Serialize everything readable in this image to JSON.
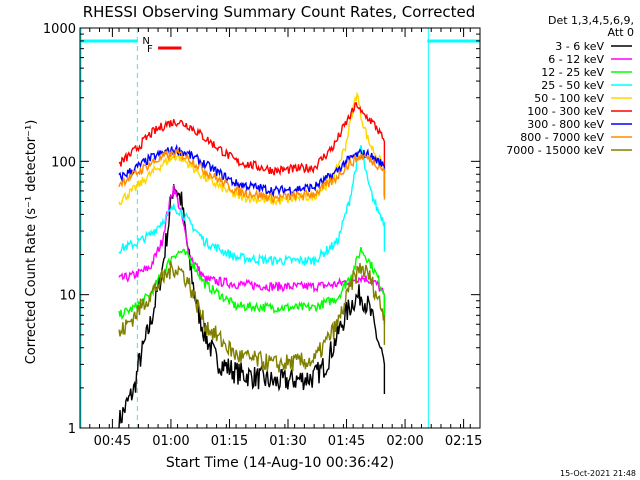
{
  "chart_data": {
    "type": "line",
    "title": "RHESSI Observing Summary Count Rates, Corrected",
    "xlabel": "Start Time (14-Aug-10 00:36:42)",
    "ylabel": "Corrected Count Rate (s⁻¹ detector⁻¹)",
    "yscale": "log",
    "ylim": [
      1,
      1000
    ],
    "xlim_minutes": [
      0,
      102.5
    ],
    "y_ticks": [
      {
        "value": 1,
        "label": "1"
      },
      {
        "value": 10,
        "label": "10"
      },
      {
        "value": 100,
        "label": "100"
      },
      {
        "value": 1000,
        "label": "1000"
      }
    ],
    "x_ticks": [
      {
        "t": 8.3,
        "label": "00:45"
      },
      {
        "t": 23.3,
        "label": "01:00"
      },
      {
        "t": 38.3,
        "label": "01:15"
      },
      {
        "t": 53.3,
        "label": "01:30"
      },
      {
        "t": 68.3,
        "label": "01:45"
      },
      {
        "t": 83.3,
        "label": "02:00"
      },
      {
        "t": 98.3,
        "label": "02:15"
      }
    ],
    "legend": {
      "header": [
        "Det 1,3,4,5,6,9,",
        "Att 0"
      ],
      "position": "right"
    },
    "series": [
      {
        "name": "3 - 6 keV",
        "color": "#000000",
        "t": [
          10,
          11,
          12,
          14,
          15,
          18,
          21,
          23,
          24,
          26,
          28,
          30,
          32,
          35,
          40,
          45,
          50,
          55,
          60,
          63,
          66,
          68,
          70,
          72,
          74,
          76,
          78
        ],
        "y": [
          1.1,
          1.3,
          1.5,
          2,
          3,
          6,
          15,
          40,
          70,
          50,
          18,
          8,
          5,
          3.2,
          2.6,
          2.4,
          2.2,
          2.3,
          2.4,
          3,
          5,
          7,
          9,
          10,
          8,
          5,
          3
        ]
      },
      {
        "name": "6 - 12 keV",
        "color": "#ff00ff",
        "t": [
          10,
          14,
          18,
          21,
          23,
          24,
          26,
          28,
          32,
          40,
          50,
          60,
          66,
          70,
          72,
          74,
          76,
          78
        ],
        "y": [
          13,
          14,
          16,
          25,
          50,
          65,
          40,
          20,
          13,
          12,
          11.5,
          11.5,
          12,
          13,
          13.5,
          13,
          12,
          10
        ]
      },
      {
        "name": "12 - 25 keV",
        "color": "#00ff00",
        "t": [
          10,
          14,
          18,
          22,
          24,
          26,
          28,
          32,
          40,
          50,
          60,
          66,
          70,
          72,
          74,
          76,
          78
        ],
        "y": [
          7,
          8,
          10,
          16,
          20,
          21,
          19,
          12,
          8.2,
          8,
          8,
          9.5,
          15,
          22,
          18,
          14,
          10
        ]
      },
      {
        "name": "25 - 50 keV",
        "color": "#00ffff",
        "t": [
          10,
          14,
          18,
          22,
          24,
          26,
          28,
          32,
          40,
          50,
          60,
          66,
          69,
          71,
          72,
          73,
          74,
          76,
          78
        ],
        "y": [
          22,
          24,
          28,
          38,
          45,
          42,
          35,
          25,
          19,
          18,
          18,
          25,
          50,
          100,
          130,
          90,
          65,
          45,
          35
        ]
      },
      {
        "name": "50 - 100 keV",
        "color": "#ffd700",
        "t": [
          10,
          14,
          18,
          22,
          25,
          28,
          32,
          40,
          50,
          60,
          65,
          68,
          70,
          71,
          72,
          74,
          76,
          78
        ],
        "y": [
          50,
          62,
          80,
          100,
          110,
          95,
          75,
          55,
          50,
          55,
          75,
          130,
          250,
          330,
          220,
          140,
          110,
          90
        ]
      },
      {
        "name": "100 - 300 keV",
        "color": "#ff0000",
        "t": [
          10,
          14,
          18,
          22,
          25,
          28,
          32,
          40,
          50,
          60,
          65,
          68,
          70,
          71,
          72,
          74,
          76,
          78
        ],
        "y": [
          95,
          120,
          160,
          190,
          200,
          185,
          150,
          100,
          85,
          90,
          130,
          190,
          240,
          270,
          230,
          210,
          180,
          140
        ]
      },
      {
        "name": "300 - 800 keV",
        "color": "#0000ff",
        "t": [
          10,
          14,
          18,
          22,
          25,
          28,
          32,
          40,
          50,
          60,
          65,
          68,
          70,
          72,
          74,
          76,
          78
        ],
        "y": [
          75,
          88,
          105,
          118,
          122,
          112,
          95,
          68,
          60,
          64,
          80,
          98,
          108,
          115,
          112,
          102,
          92
        ]
      },
      {
        "name": "800 - 7000 keV",
        "color": "#ff8c00",
        "t": [
          10,
          14,
          18,
          22,
          25,
          28,
          32,
          40,
          50,
          60,
          65,
          68,
          70,
          72,
          74,
          76,
          78
        ],
        "y": [
          68,
          80,
          96,
          110,
          115,
          105,
          85,
          60,
          53,
          57,
          72,
          90,
          100,
          110,
          105,
          96,
          86
        ]
      },
      {
        "name": "7000 - 15000 keV",
        "color": "#808000",
        "t": [
          10,
          14,
          18,
          22,
          24,
          26,
          28,
          32,
          40,
          50,
          60,
          66,
          70,
          72,
          74,
          76,
          78
        ],
        "y": [
          5,
          7,
          10,
          14,
          16,
          15,
          12,
          6,
          3.5,
          3,
          3.2,
          6,
          13,
          16,
          14,
          10,
          7
        ]
      }
    ],
    "annotations": [
      {
        "label": "N",
        "color": "#00ffff",
        "kind": "night",
        "intervals": [
          [
            0,
            14.7
          ],
          [
            89,
            102.5
          ]
        ],
        "verticals": [
          0,
          89
        ]
      },
      {
        "label": "F",
        "color": "#ff0000",
        "kind": "flare",
        "segment": [
          20,
          26
        ]
      }
    ],
    "footer_date": "15-Oct-2021 21:48"
  }
}
